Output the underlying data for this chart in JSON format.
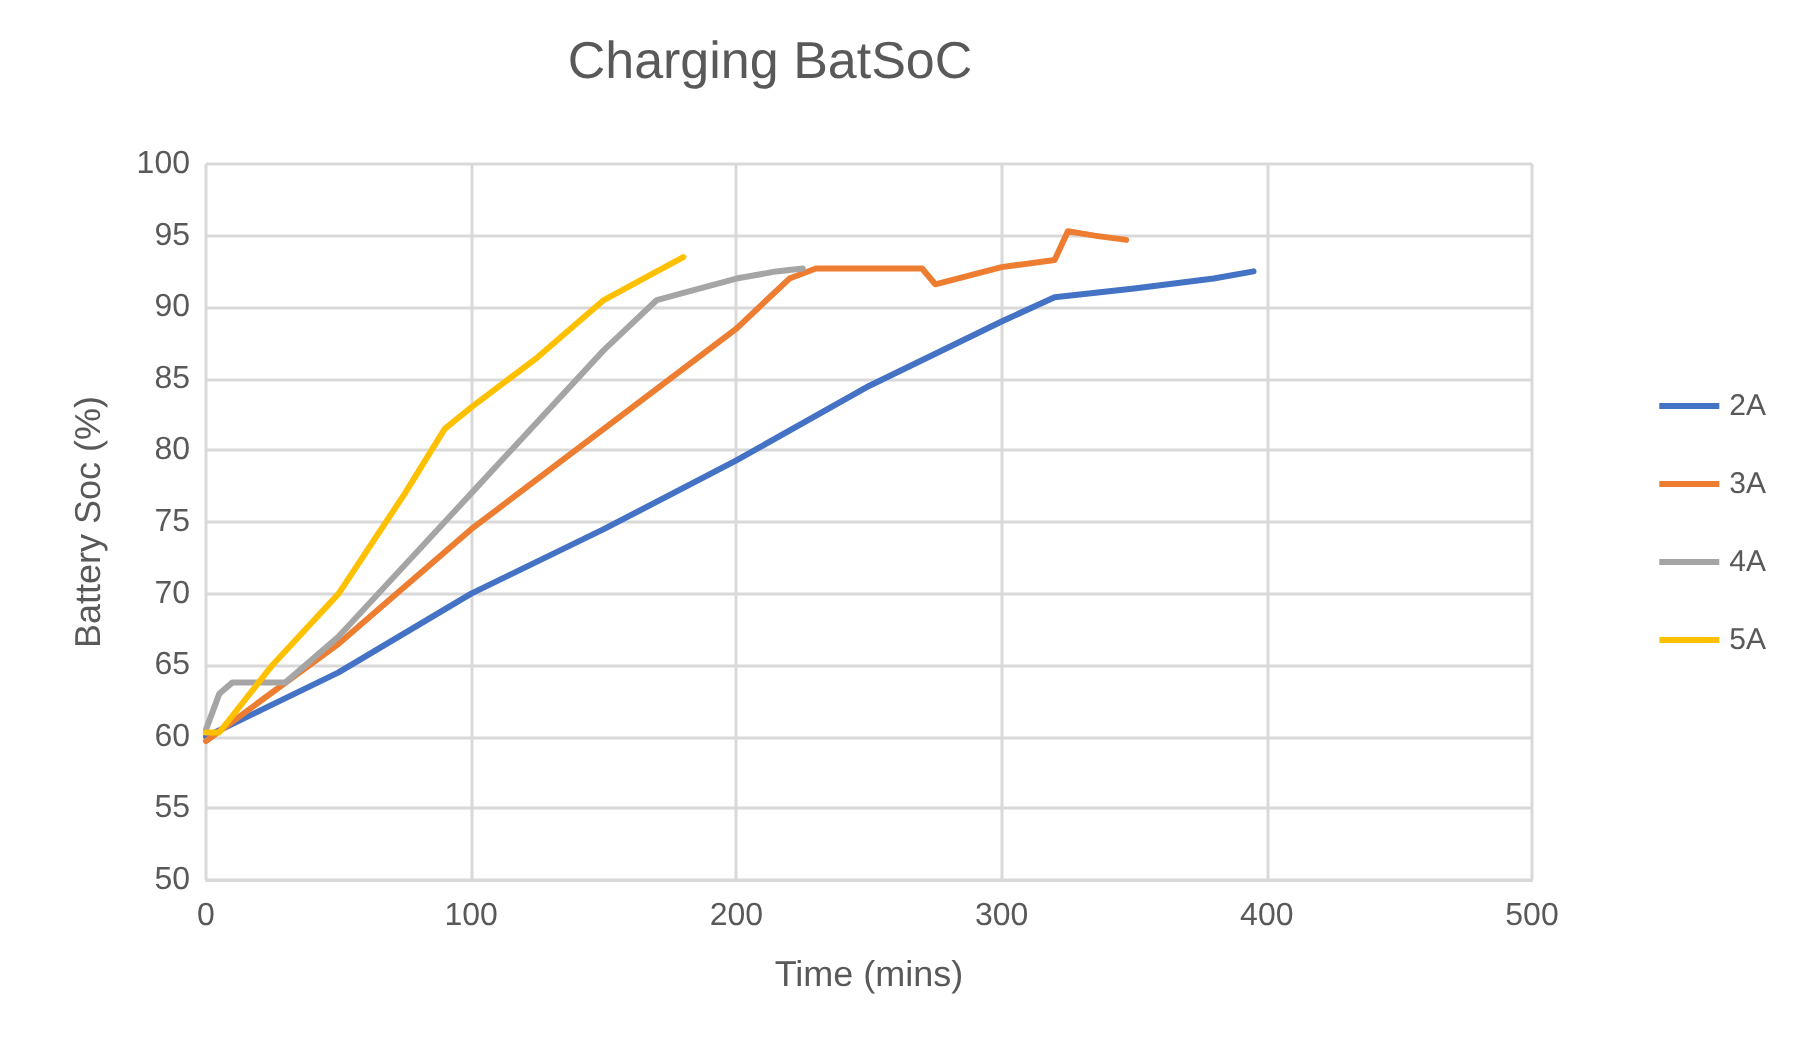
{
  "chart_data": {
    "type": "line",
    "title": "Charging BatSoC",
    "xlabel": "Time (mins)",
    "ylabel": "Battery Soc (%)",
    "xlim": [
      0,
      500
    ],
    "xticks": [
      0,
      100,
      200,
      300,
      400,
      500
    ],
    "ylim": [
      50,
      100
    ],
    "yticks": [
      50,
      55,
      60,
      65,
      70,
      75,
      80,
      85,
      90,
      95,
      100
    ],
    "grid": true,
    "legend": "right",
    "marker": "none",
    "line_style": "solid",
    "series": [
      {
        "name": "2A",
        "color": "#4472c4",
        "x": [
          0,
          50,
          100,
          150,
          200,
          250,
          300,
          320,
          350,
          380,
          395
        ],
        "values": [
          60,
          64.5,
          70,
          74.5,
          79.3,
          84.5,
          89,
          90.7,
          91.3,
          92,
          92.5
        ]
      },
      {
        "name": "3A",
        "color": "#ed7d31",
        "x": [
          0,
          50,
          100,
          150,
          200,
          220,
          230,
          270,
          275,
          300,
          320,
          325,
          335,
          347
        ],
        "values": [
          59.7,
          66.5,
          74.5,
          81.5,
          88.5,
          92,
          92.7,
          92.7,
          91.6,
          92.8,
          93.3,
          95.3,
          95,
          94.7
        ]
      },
      {
        "name": "4A",
        "color": "#a5a5a5",
        "x": [
          0,
          5,
          10,
          30,
          50,
          100,
          150,
          170,
          180,
          200,
          215,
          225
        ],
        "values": [
          60.5,
          63,
          63.8,
          63.8,
          67,
          77,
          87,
          90.5,
          91,
          92,
          92.5,
          92.7
        ]
      },
      {
        "name": "5A",
        "color": "#ffc000",
        "x": [
          0,
          5,
          25,
          50,
          75,
          90,
          100,
          125,
          150,
          170,
          180
        ],
        "values": [
          60.3,
          60.3,
          65,
          70,
          77,
          81.5,
          83,
          86.5,
          90.5,
          92.5,
          93.5
        ]
      }
    ]
  }
}
